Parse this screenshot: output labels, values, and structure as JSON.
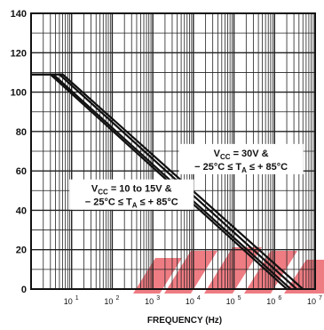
{
  "chart_data": {
    "type": "line",
    "x_scale": "log",
    "xlim": [
      1,
      10000000
    ],
    "ylim": [
      0,
      140
    ],
    "y_ticks": [
      0,
      20,
      40,
      60,
      80,
      100,
      120,
      140
    ],
    "x_tick_labels": [
      {
        "value": 10,
        "base": "10",
        "exp": "1"
      },
      {
        "value": 100,
        "base": "10",
        "exp": "2"
      },
      {
        "value": 1000,
        "base": "10",
        "exp": "3"
      },
      {
        "value": 10000,
        "base": "10",
        "exp": "4"
      },
      {
        "value": 100000,
        "base": "10",
        "exp": "5"
      },
      {
        "value": 1000000,
        "base": "10",
        "exp": "6"
      },
      {
        "value": 10000000,
        "base": "10",
        "exp": "7"
      }
    ],
    "xlabel": "FREQUENCY (Hz)",
    "ylabel": "",
    "grid": true,
    "series": [
      {
        "x": [
          1,
          3.5,
          2500000
        ],
        "y": [
          109,
          109,
          0
        ]
      },
      {
        "x": [
          1,
          5,
          3500000
        ],
        "y": [
          109,
          109,
          0
        ]
      },
      {
        "x": [
          1,
          3,
          2000000
        ],
        "y": [
          109,
          109,
          0
        ]
      },
      {
        "x": [
          1,
          6,
          5000000
        ],
        "y": [
          109,
          109,
          0
        ]
      }
    ],
    "annotations": [
      {
        "line1": "V<sub>CC</sub> = 30V &",
        "line2": "− 25°C ≤ T<sub>A</sub> ≤ + 85°C",
        "line1_parts": [
          "V",
          "CC",
          " = 30V &"
        ],
        "line2_parts": [
          "− 25°C ≤ T",
          "A",
          " ≤ + 85°C"
        ],
        "x": 150000,
        "y": 66
      },
      {
        "line1_parts": [
          "V",
          "CC",
          " = 10 to 15V &"
        ],
        "line2_parts": [
          "− 25°C ≤ T",
          "A",
          " ≤ + 85°C"
        ],
        "x": 300,
        "y": 48
      }
    ]
  }
}
